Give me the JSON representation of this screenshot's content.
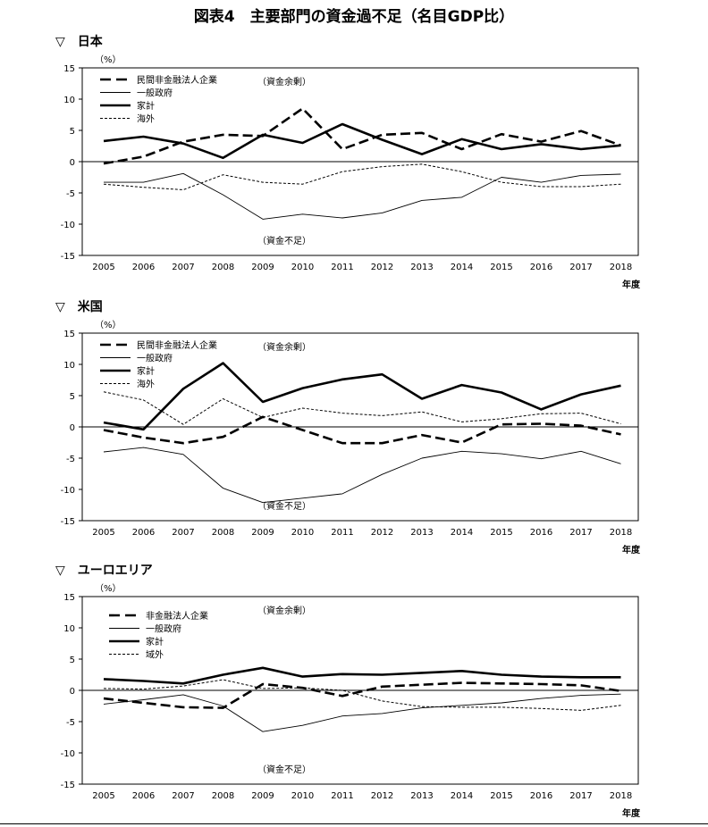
{
  "title": "図表4　主要部門の資金過不足（名目GDP比）",
  "chart_data": [
    {
      "type": "line",
      "section_title": "▽　日本",
      "unit": "（%）",
      "xlabel": "年度",
      "ylim": [
        -15,
        15
      ],
      "yticks": [
        15,
        10,
        5,
        0,
        -5,
        -10,
        -15
      ],
      "x": [
        "2005",
        "2006",
        "2007",
        "2008",
        "2009",
        "2010",
        "2011",
        "2012",
        "2013",
        "2014",
        "2015",
        "2016",
        "2017",
        "2018"
      ],
      "annotations": {
        "surplus": "（資金余剰）",
        "deficit": "（資金不足）"
      },
      "series": [
        {
          "name": "民間非金融法人企業",
          "style": "dash",
          "values": [
            -0.3,
            0.8,
            3.2,
            4.3,
            4.1,
            8.5,
            2.0,
            4.3,
            4.6,
            2.0,
            4.4,
            3.2,
            4.9,
            2.6
          ]
        },
        {
          "name": "一般政府",
          "style": "thin",
          "values": [
            -3.3,
            -3.3,
            -1.9,
            -5.3,
            -9.2,
            -8.4,
            -9.0,
            -8.2,
            -6.2,
            -5.7,
            -2.5,
            -3.3,
            -2.2,
            -2.0
          ]
        },
        {
          "name": "家計",
          "style": "thick",
          "values": [
            3.3,
            4.0,
            2.9,
            0.6,
            4.3,
            3.0,
            6.0,
            3.5,
            1.2,
            3.6,
            2.0,
            2.8,
            2.0,
            2.6
          ]
        },
        {
          "name": "海外",
          "style": "dot",
          "values": [
            -3.6,
            -4.1,
            -4.5,
            -2.1,
            -3.3,
            -3.6,
            -1.6,
            -0.8,
            -0.4,
            -1.6,
            -3.3,
            -4.0,
            -4.0,
            -3.6
          ]
        }
      ]
    },
    {
      "type": "line",
      "section_title": "▽　米国",
      "unit": "（%）",
      "xlabel": "年度",
      "ylim": [
        -15,
        15
      ],
      "yticks": [
        15,
        10,
        5,
        0,
        -5,
        -10,
        -15
      ],
      "x": [
        "2005",
        "2006",
        "2007",
        "2008",
        "2009",
        "2010",
        "2011",
        "2012",
        "2013",
        "2014",
        "2015",
        "2016",
        "2017",
        "2018"
      ],
      "annotations": {
        "surplus": "（資金余剰）",
        "deficit": "（資金不足）"
      },
      "series": [
        {
          "name": "民間非金融法人企業",
          "style": "dash",
          "values": [
            -0.5,
            -1.7,
            -2.6,
            -1.6,
            1.6,
            -0.5,
            -2.6,
            -2.6,
            -1.3,
            -2.5,
            0.4,
            0.5,
            0.2,
            -1.2
          ]
        },
        {
          "name": "一般政府",
          "style": "thin",
          "values": [
            -4.0,
            -3.3,
            -4.4,
            -9.8,
            -12.1,
            -11.4,
            -10.7,
            -7.6,
            -5.0,
            -3.9,
            -4.3,
            -5.1,
            -3.9,
            -5.9
          ]
        },
        {
          "name": "家計",
          "style": "thick",
          "values": [
            0.7,
            -0.4,
            6.1,
            10.2,
            4.0,
            6.2,
            7.6,
            8.4,
            4.5,
            6.7,
            5.5,
            2.8,
            5.2,
            6.6
          ]
        },
        {
          "name": "海外",
          "style": "dot",
          "values": [
            5.6,
            4.3,
            0.4,
            4.5,
            1.5,
            3.0,
            2.2,
            1.8,
            2.4,
            0.8,
            1.3,
            2.1,
            2.2,
            0.5
          ]
        }
      ]
    },
    {
      "type": "line",
      "section_title": "▽　ユーロエリア",
      "unit": "（%）",
      "xlabel": "年度",
      "ylim": [
        -15,
        15
      ],
      "yticks": [
        15,
        10,
        5,
        0,
        -5,
        -10,
        -15
      ],
      "x": [
        "2005",
        "2006",
        "2007",
        "2008",
        "2009",
        "2010",
        "2011",
        "2012",
        "2013",
        "2014",
        "2015",
        "2016",
        "2017",
        "2018"
      ],
      "annotations": {
        "surplus": "（資金余剰）",
        "deficit": "（資金不足）"
      },
      "series": [
        {
          "name": "非金融法人企業",
          "style": "dash",
          "values": [
            -1.3,
            -2.0,
            -2.7,
            -2.8,
            1.0,
            0.4,
            -0.9,
            0.6,
            0.9,
            1.2,
            1.1,
            1.0,
            0.8,
            -0.1
          ]
        },
        {
          "name": "一般政府",
          "style": "thin",
          "values": [
            -2.2,
            -1.5,
            -0.7,
            -2.5,
            -6.6,
            -5.6,
            -4.1,
            -3.7,
            -2.8,
            -2.4,
            -2.0,
            -1.3,
            -0.8,
            -0.6
          ]
        },
        {
          "name": "家計",
          "style": "thick",
          "values": [
            1.8,
            1.5,
            1.1,
            2.5,
            3.6,
            2.2,
            2.6,
            2.5,
            2.8,
            3.1,
            2.5,
            2.2,
            2.1,
            2.1
          ]
        },
        {
          "name": "域外",
          "style": "dot",
          "values": [
            0.3,
            0.2,
            0.7,
            1.7,
            0.3,
            0.4,
            0.0,
            -1.7,
            -2.6,
            -2.7,
            -2.7,
            -2.9,
            -3.2,
            -2.4
          ]
        }
      ]
    }
  ]
}
